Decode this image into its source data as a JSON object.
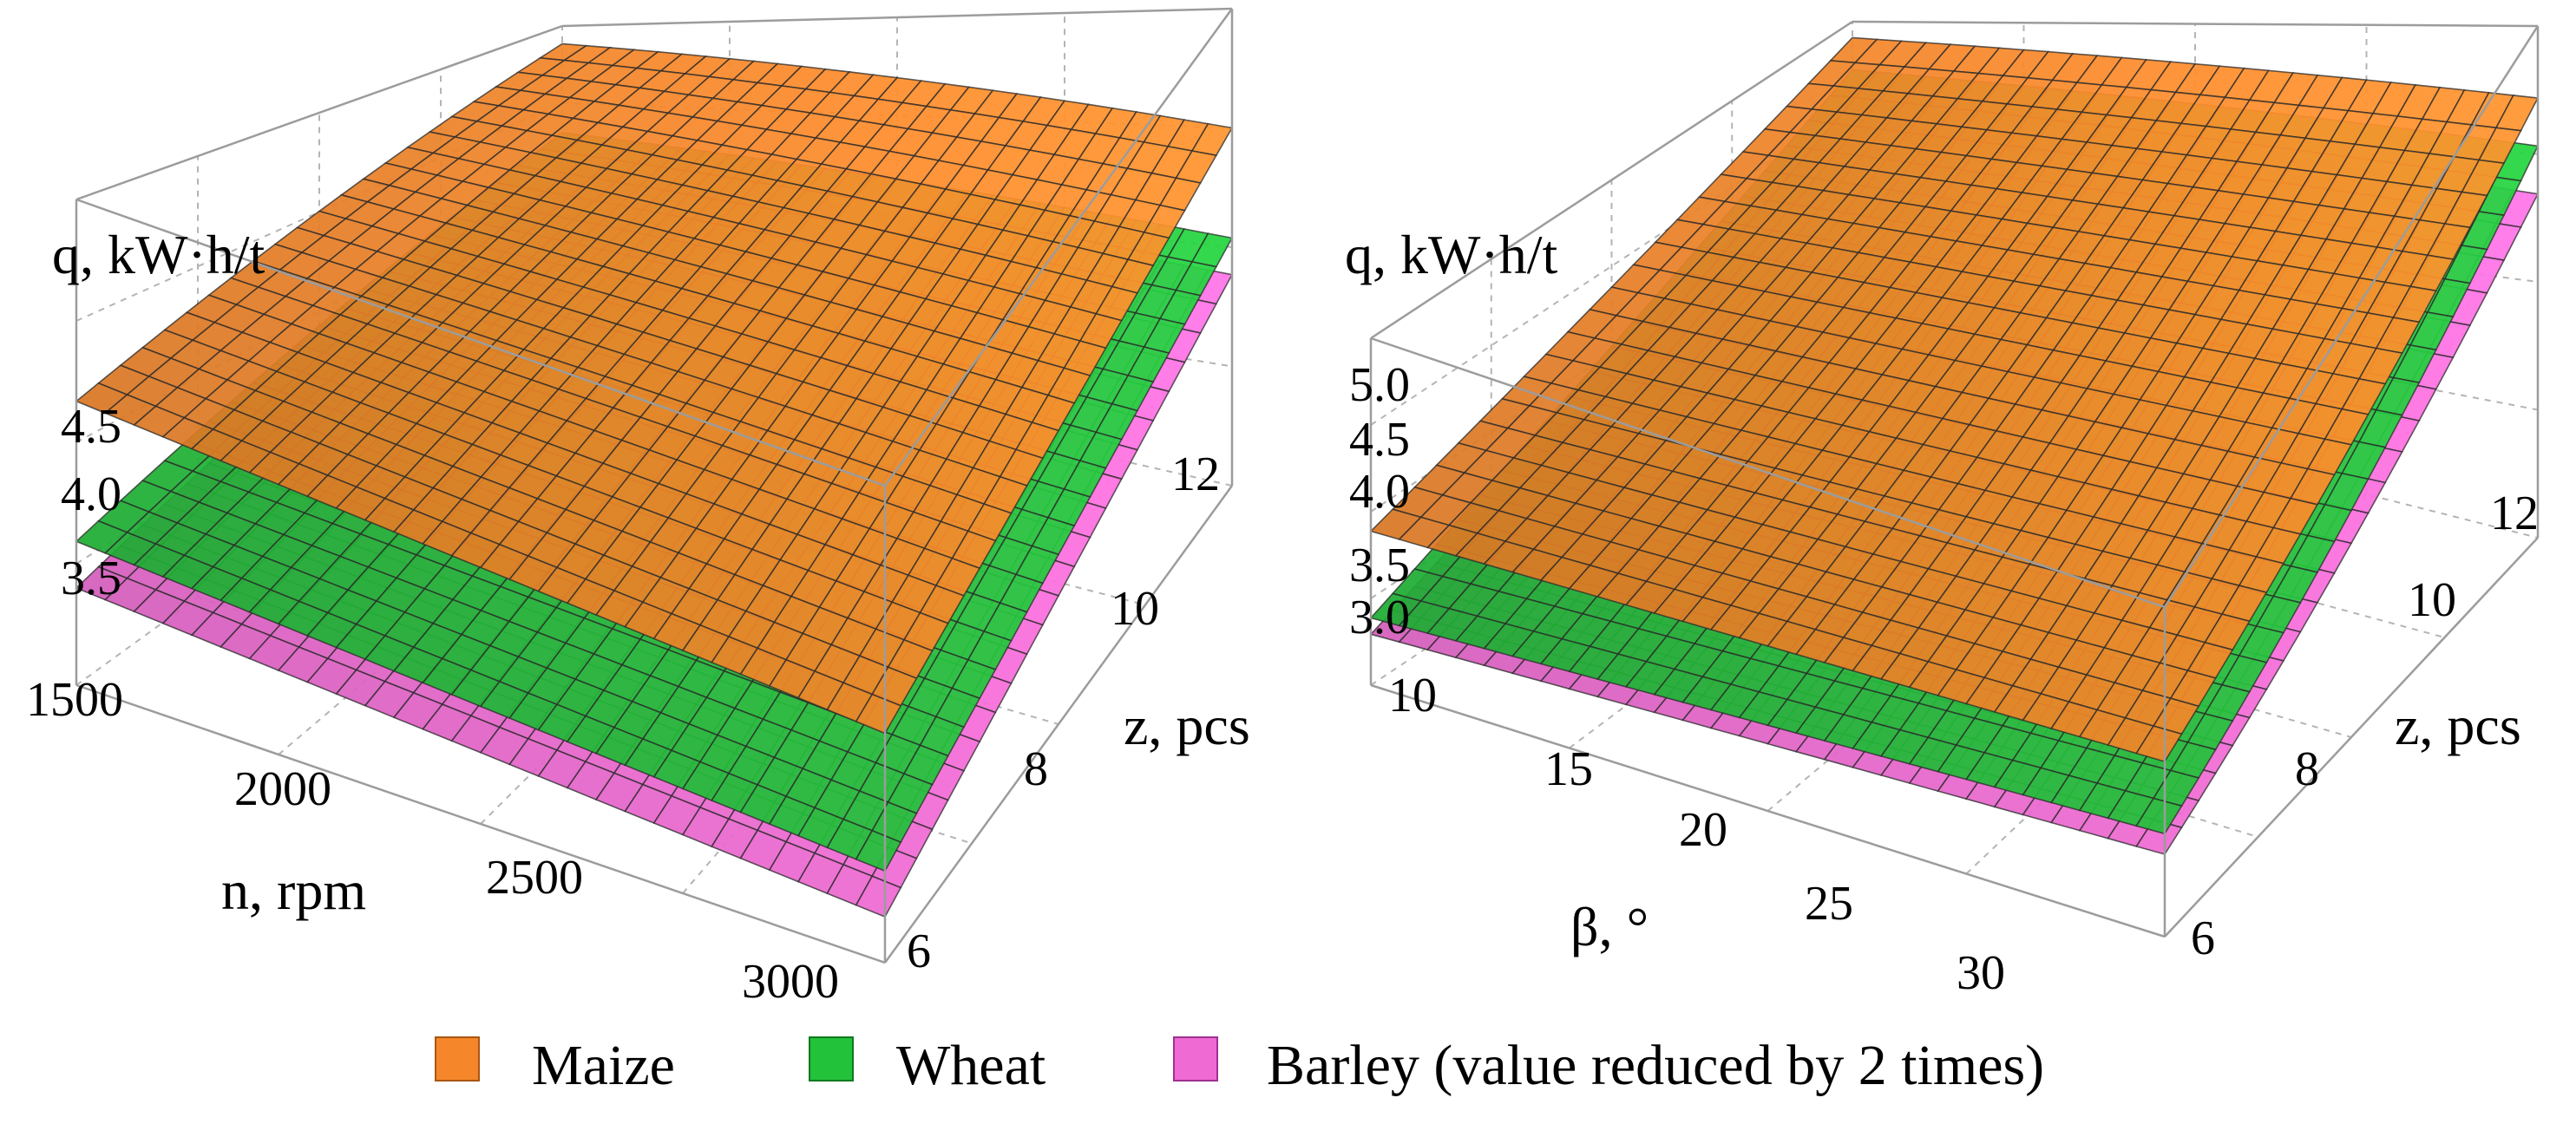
{
  "chart_data": [
    {
      "type": "surface3d",
      "zlabel": "q, kW·h/t",
      "xlabel": "n, rpm",
      "ylabel": "z, pcs",
      "x_ticks": [
        "1500",
        "2000",
        "2500",
        "3000"
      ],
      "y_ticks": [
        "6",
        "8",
        "10",
        "12"
      ],
      "z_ticks": [
        "3.5",
        "4.0",
        "4.5"
      ],
      "xlim": [
        1500,
        3000
      ],
      "ylim": [
        6,
        12
      ],
      "series": [
        {
          "name": "Maize",
          "color": "#f5872a",
          "corners": {
            "x1500_z12": 5.45,
            "x3000_z12": 5.0,
            "x1500_z6": 4.4,
            "x3000_z6": 4.25
          }
        },
        {
          "name": "Wheat",
          "color": "#22c23a",
          "corners": {
            "x1500_z12": 4.7,
            "x3000_z12": 4.4,
            "x1500_z6": 3.65,
            "x3000_z6": 3.5
          }
        },
        {
          "name": "Barley (value reduced by 2 times)",
          "color": "#f06ad4",
          "corners": {
            "x1500_z12": 4.45,
            "x3000_z12": 4.2,
            "x1500_z6": 3.4,
            "x3000_z6": 3.25
          }
        }
      ]
    },
    {
      "type": "surface3d",
      "zlabel": "q, kW·h/t",
      "xlabel": "β, °",
      "ylabel": "z, pcs",
      "x_ticks": [
        "10",
        "15",
        "20",
        "25",
        "30"
      ],
      "y_ticks": [
        "6",
        "8",
        "10",
        "12"
      ],
      "z_ticks": [
        "3.0",
        "3.5",
        "4.0",
        "4.5",
        "5.0"
      ],
      "xlim": [
        10,
        30
      ],
      "ylim": [
        6,
        12
      ],
      "series": [
        {
          "name": "Maize",
          "color": "#f5872a",
          "corners": {
            "x10_z12": 5.65,
            "x30_z12": 5.4,
            "x10_z6": 3.9,
            "x30_z6": 4.3
          }
        },
        {
          "name": "Wheat",
          "color": "#22c23a",
          "corners": {
            "x10_z12": 5.35,
            "x30_z12": 5.1,
            "x10_z6": 3.1,
            "x30_z6": 3.6
          }
        },
        {
          "name": "Barley (value reduced by 2 times)",
          "color": "#f06ad4",
          "corners": {
            "x10_z12": 5.05,
            "x30_z12": 4.8,
            "x10_z6": 2.95,
            "x30_z6": 3.4
          }
        }
      ]
    }
  ],
  "legend": [
    {
      "label": "Maize",
      "color": "#f5872a"
    },
    {
      "label": "Wheat",
      "color": "#22c23a"
    },
    {
      "label": "Barley (value reduced by 2 times)",
      "color": "#f06ad4"
    }
  ]
}
